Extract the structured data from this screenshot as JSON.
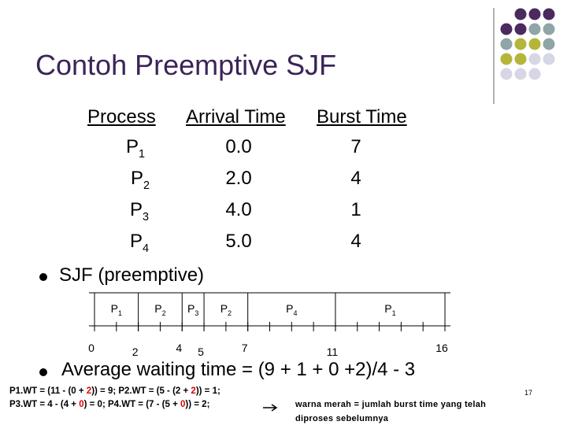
{
  "title": "Contoh Preemptive SJF",
  "table": {
    "header": [
      "Process",
      "Arrival Time",
      "Burst Time"
    ],
    "rows": [
      [
        {
          "name": "P",
          "sub": "1"
        },
        "0.0",
        "7"
      ],
      [
        {
          "name": "P",
          "sub": "2"
        },
        "2.0",
        "4"
      ],
      [
        {
          "name": "P",
          "sub": "3"
        },
        "4.0",
        "1"
      ],
      [
        {
          "name": "P",
          "sub": "4"
        },
        "5.0",
        "4"
      ]
    ]
  },
  "bullets": [
    "SJF (preemptive)",
    "Average waiting time = (9 + 1 + 0 +2)/4 - 3"
  ],
  "gantt": {
    "labels": [
      {
        "name": "P",
        "sub": "1"
      },
      {
        "name": "P",
        "sub": "2"
      },
      {
        "name": "P",
        "sub": "3"
      },
      {
        "name": "P",
        "sub": "2"
      },
      {
        "name": "P",
        "sub": "4"
      },
      {
        "name": "P",
        "sub": "1"
      }
    ],
    "times": [
      0,
      2,
      4,
      5,
      7,
      11,
      16
    ]
  },
  "footer": [
    [
      {
        "text": "P1.WT = (11 - (0 + ",
        "highlight": false
      },
      {
        "text": "2",
        "highlight": true
      },
      {
        "text": ")) = 9; P2.WT = (5 - (2 + ",
        "highlight": false
      },
      {
        "text": "2",
        "highlight": true
      },
      {
        "text": ")) = 1;",
        "highlight": false
      }
    ],
    [
      {
        "text": "P3.WT = 4 - (4 + ",
        "highlight": false
      },
      {
        "text": "0",
        "highlight": true
      },
      {
        "text": ") = 0; P4.WT = (7 - (5 + ",
        "highlight": false
      },
      {
        "text": "0",
        "highlight": true
      },
      {
        "text": ")) = 2;",
        "highlight": false
      }
    ]
  ],
  "note": [
    "warna merah = jumlah burst time yang telah",
    "diproses sebelumnya"
  ],
  "page_number": "17"
}
